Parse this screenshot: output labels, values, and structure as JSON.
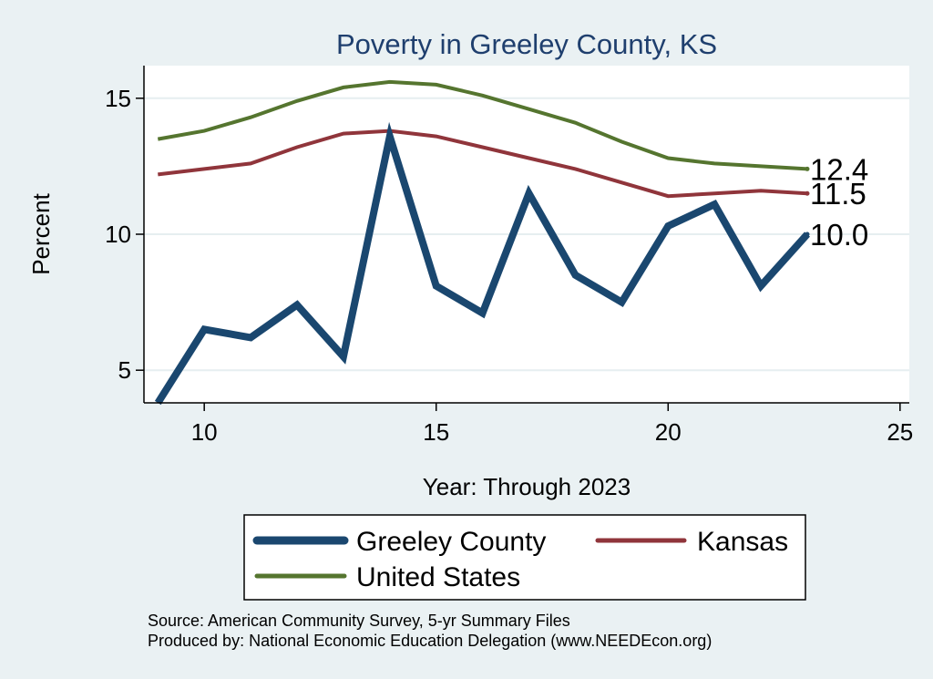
{
  "chart_data": {
    "type": "line",
    "title": "Poverty in Greeley County, KS",
    "xlabel": "Year: Through 2023",
    "ylabel": "Percent",
    "xlim": [
      8.7,
      25.2
    ],
    "ylim": [
      3.8,
      16.2
    ],
    "x_ticks": [
      10,
      15,
      20,
      25
    ],
    "y_ticks": [
      5,
      10,
      15
    ],
    "grid": true,
    "series": [
      {
        "name": "Greeley County",
        "color": "#1a476f",
        "width": 8,
        "x": [
          9,
          10,
          11,
          12,
          13,
          14,
          15,
          16,
          17,
          18,
          19,
          20,
          21,
          22,
          23
        ],
        "values": [
          3.8,
          6.5,
          6.2,
          7.4,
          5.5,
          13.6,
          8.1,
          7.1,
          11.5,
          8.5,
          7.5,
          10.3,
          11.1,
          8.1,
          10.0
        ],
        "end_label": "10.0"
      },
      {
        "name": "Kansas",
        "color": "#90353b",
        "width": 4,
        "x": [
          9,
          10,
          11,
          12,
          13,
          14,
          15,
          16,
          17,
          18,
          19,
          20,
          21,
          22,
          23
        ],
        "values": [
          12.2,
          12.4,
          12.6,
          13.2,
          13.7,
          13.8,
          13.6,
          13.2,
          12.8,
          12.4,
          11.9,
          11.4,
          11.5,
          11.6,
          11.5
        ],
        "end_label": "11.5"
      },
      {
        "name": "United States",
        "color": "#55752f",
        "width": 4,
        "x": [
          9,
          10,
          11,
          12,
          13,
          14,
          15,
          16,
          17,
          18,
          19,
          20,
          21,
          22,
          23
        ],
        "values": [
          13.5,
          13.8,
          14.3,
          14.9,
          15.4,
          15.6,
          15.5,
          15.1,
          14.6,
          14.1,
          13.4,
          12.8,
          12.6,
          12.5,
          12.4
        ],
        "end_label": "12.4"
      }
    ],
    "legend": {
      "placement": "bottom",
      "entries": [
        "Greeley County",
        "Kansas",
        "United States"
      ]
    },
    "notes": [
      "Source: American Community Survey, 5-yr Summary Files",
      "Produced by: National Economic Education Delegation (www.NEEDEcon.org)"
    ]
  }
}
